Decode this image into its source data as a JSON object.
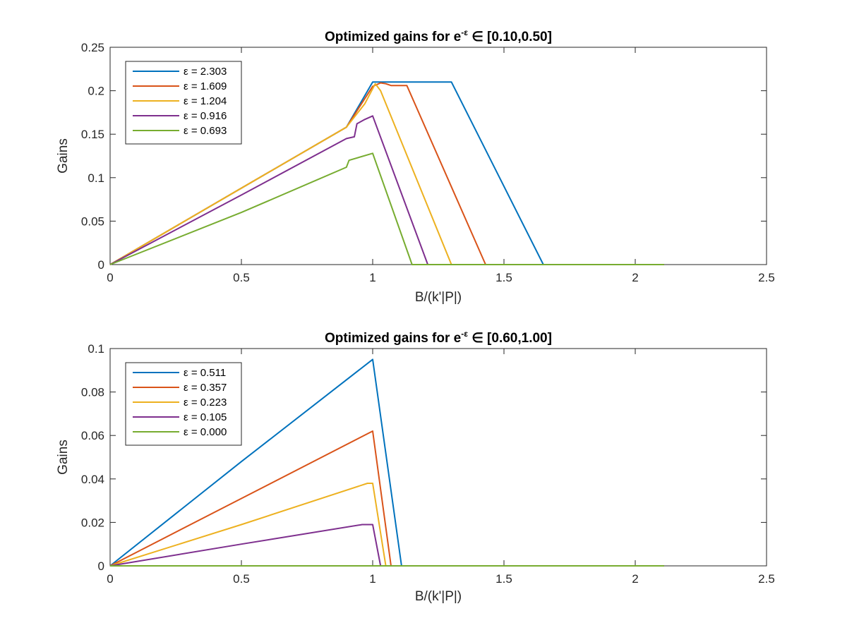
{
  "chart_data": [
    {
      "type": "line",
      "title_prefix": "Optimized gains for e",
      "title_sup": "-ε",
      "title_suffix": " ∈ [0.10,0.50]",
      "xlabel": "B/(k'|P|)",
      "ylabel": "Gains",
      "xlim": [
        0,
        2.5
      ],
      "ylim": [
        0,
        0.25
      ],
      "xticks": [
        0,
        0.5,
        1,
        1.5,
        2,
        2.5
      ],
      "xtick_labels": [
        "0",
        "0.5",
        "1",
        "1.5",
        "2",
        "2.5"
      ],
      "yticks": [
        0,
        0.05,
        0.1,
        0.15,
        0.2,
        0.25
      ],
      "ytick_labels": [
        "0",
        "0.05",
        "0.1",
        "0.15",
        "0.2",
        "0.25"
      ],
      "legend_position": "top-left",
      "series": [
        {
          "name": "ε = 2.303",
          "color": "#0072BD",
          "points": [
            [
              0,
              0
            ],
            [
              0.5,
              0.088
            ],
            [
              0.9,
              0.158
            ],
            [
              1.0,
              0.21
            ],
            [
              1.3,
              0.21
            ],
            [
              1.65,
              0
            ],
            [
              2.11,
              0
            ]
          ]
        },
        {
          "name": "ε = 1.609",
          "color": "#D95319",
          "points": [
            [
              0,
              0
            ],
            [
              0.5,
              0.088
            ],
            [
              0.9,
              0.158
            ],
            [
              1.0,
              0.205
            ],
            [
              1.03,
              0.209
            ],
            [
              1.05,
              0.208
            ],
            [
              1.07,
              0.206
            ],
            [
              1.13,
              0.206
            ],
            [
              1.43,
              0
            ],
            [
              2.11,
              0
            ]
          ]
        },
        {
          "name": "ε = 1.204",
          "color": "#EDB120",
          "points": [
            [
              0,
              0
            ],
            [
              0.5,
              0.088
            ],
            [
              0.9,
              0.158
            ],
            [
              0.97,
              0.185
            ],
            [
              1.01,
              0.208
            ],
            [
              1.03,
              0.2
            ],
            [
              1.3,
              0
            ],
            [
              2.11,
              0
            ]
          ]
        },
        {
          "name": "ε = 0.916",
          "color": "#7E2F8E",
          "points": [
            [
              0,
              0
            ],
            [
              0.5,
              0.08
            ],
            [
              0.9,
              0.145
            ],
            [
              0.93,
              0.147
            ],
            [
              0.94,
              0.162
            ],
            [
              0.97,
              0.167
            ],
            [
              1.0,
              0.171
            ],
            [
              1.21,
              0
            ],
            [
              2.11,
              0
            ]
          ]
        },
        {
          "name": "ε = 0.693",
          "color": "#77AC30",
          "points": [
            [
              0,
              0
            ],
            [
              0.5,
              0.06
            ],
            [
              0.9,
              0.112
            ],
            [
              0.91,
              0.12
            ],
            [
              1.0,
              0.128
            ],
            [
              1.15,
              0
            ],
            [
              2.11,
              0
            ]
          ]
        }
      ]
    },
    {
      "type": "line",
      "title_prefix": "Optimized gains for e",
      "title_sup": "-ε",
      "title_suffix": " ∈ [0.60,1.00]",
      "xlabel": "B/(k'|P|)",
      "ylabel": "Gains",
      "xlim": [
        0,
        2.5
      ],
      "ylim": [
        0,
        0.1
      ],
      "xticks": [
        0,
        0.5,
        1,
        1.5,
        2,
        2.5
      ],
      "xtick_labels": [
        "0",
        "0.5",
        "1",
        "1.5",
        "2",
        "2.5"
      ],
      "yticks": [
        0,
        0.02,
        0.04,
        0.06,
        0.08,
        0.1
      ],
      "ytick_labels": [
        "0",
        "0.02",
        "0.04",
        "0.06",
        "0.08",
        "0.1"
      ],
      "legend_position": "top-left",
      "series": [
        {
          "name": "ε = 0.511",
          "color": "#0072BD",
          "points": [
            [
              0,
              0
            ],
            [
              0.5,
              0.048
            ],
            [
              1.0,
              0.095
            ],
            [
              1.11,
              0
            ],
            [
              2.11,
              0
            ]
          ]
        },
        {
          "name": "ε = 0.357",
          "color": "#D95319",
          "points": [
            [
              0,
              0
            ],
            [
              0.5,
              0.031
            ],
            [
              1.0,
              0.062
            ],
            [
              1.07,
              0
            ],
            [
              2.11,
              0
            ]
          ]
        },
        {
          "name": "ε = 0.223",
          "color": "#EDB120",
          "points": [
            [
              0,
              0
            ],
            [
              0.5,
              0.019
            ],
            [
              0.98,
              0.038
            ],
            [
              1.0,
              0.038
            ],
            [
              1.05,
              0
            ],
            [
              2.11,
              0
            ]
          ]
        },
        {
          "name": "ε = 0.105",
          "color": "#7E2F8E",
          "points": [
            [
              0,
              0
            ],
            [
              0.5,
              0.01
            ],
            [
              0.96,
              0.019
            ],
            [
              1.0,
              0.019
            ],
            [
              1.03,
              0
            ],
            [
              2.11,
              0
            ]
          ]
        },
        {
          "name": "ε = 0.000",
          "color": "#77AC30",
          "points": [
            [
              0,
              0
            ],
            [
              2.11,
              0
            ]
          ]
        }
      ]
    }
  ]
}
